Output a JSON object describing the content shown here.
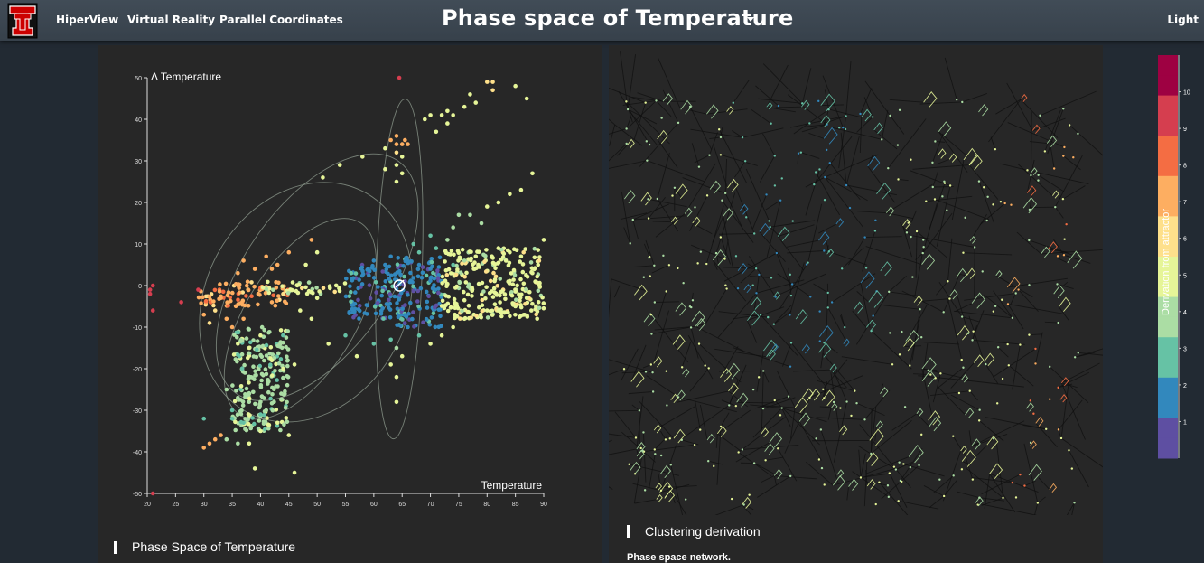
{
  "navbar": {
    "links": [
      "HiperView",
      "Virtual Reality",
      "Parallel Coordinates"
    ],
    "title": "Phase space of Temperature",
    "theme_toggle": "Light",
    "logo_letter": "T"
  },
  "left_panel": {
    "heading": "Phase Space of Temperature"
  },
  "right_panel": {
    "heading": "Clustering derivation",
    "subtitle": "Phase space network."
  },
  "colors": {
    "page_bg": "#222a33",
    "panel_bg": "#272727",
    "navbar_bg": "#3b4550",
    "scale": [
      "#5e4fa2",
      "#3288bd",
      "#66c2a5",
      "#abdda4",
      "#e6f598",
      "#fee08b",
      "#fdae61",
      "#f46d43",
      "#d53e4f",
      "#9e0142"
    ]
  },
  "legend": {
    "label": "Derivation from attractor",
    "ticks": [
      "1",
      "2",
      "3",
      "4",
      "5",
      "6",
      "7",
      "8",
      "9",
      "10"
    ],
    "domain": [
      0,
      11
    ]
  },
  "chart_data": {
    "type": "scatter",
    "title": "",
    "xlabel": "Temperature",
    "ylabel": "Δ Temperature",
    "xlim": [
      20,
      90
    ],
    "ylim": [
      -50,
      50
    ],
    "xticks": [
      "20",
      "25",
      "30",
      "35",
      "40",
      "45",
      "50",
      "55",
      "60",
      "65",
      "70",
      "75",
      "80",
      "85",
      "90"
    ],
    "yticks": [
      "-50",
      "-40",
      "-30",
      "-20",
      "-10",
      "0",
      "10",
      "20",
      "30",
      "40",
      "50"
    ],
    "grid": false,
    "clusters": [
      {
        "x_range": [
          29,
          45
        ],
        "y_range": [
          -5,
          1
        ],
        "color_level": 7
      },
      {
        "x_range": [
          40,
          55
        ],
        "y_range": [
          -2,
          1
        ],
        "color_level": 5
      },
      {
        "x_range": [
          55,
          65
        ],
        "y_range": [
          -8,
          5
        ],
        "color_level": 2
      },
      {
        "x_range": [
          64,
          72
        ],
        "y_range": [
          -10,
          7
        ],
        "color_level": 2
      },
      {
        "x_range": [
          72,
          90
        ],
        "y_range": [
          -8,
          9
        ],
        "color_level": 5
      },
      {
        "x_range": [
          35,
          45
        ],
        "y_range": [
          -35,
          -10
        ],
        "color_level": 4
      }
    ],
    "points": [
      {
        "x": 21,
        "y": 0,
        "level": 9
      },
      {
        "x": 20.5,
        "y": -1,
        "level": 9
      },
      {
        "x": 20.5,
        "y": -2,
        "level": 9
      },
      {
        "x": 21,
        "y": -6,
        "level": 9
      },
      {
        "x": 26,
        "y": -4,
        "level": 9
      },
      {
        "x": 29,
        "y": -1,
        "level": 9
      },
      {
        "x": 21,
        "y": -50,
        "level": 9
      },
      {
        "x": 64.5,
        "y": 50,
        "level": 9
      },
      {
        "x": 80,
        "y": 49,
        "level": 6
      },
      {
        "x": 81,
        "y": 49,
        "level": 6
      },
      {
        "x": 81,
        "y": 47,
        "level": 6
      },
      {
        "x": 85,
        "y": 48,
        "level": 5
      },
      {
        "x": 87,
        "y": 45,
        "level": 5
      },
      {
        "x": 77,
        "y": 46,
        "level": 5
      },
      {
        "x": 78,
        "y": 44,
        "level": 5
      },
      {
        "x": 76,
        "y": 43,
        "level": 5
      },
      {
        "x": 74,
        "y": 41,
        "level": 5
      },
      {
        "x": 73,
        "y": 42,
        "level": 5
      },
      {
        "x": 72,
        "y": 41,
        "level": 5
      },
      {
        "x": 70,
        "y": 41,
        "level": 5
      },
      {
        "x": 69,
        "y": 40,
        "level": 5
      },
      {
        "x": 73,
        "y": 39,
        "level": 5
      },
      {
        "x": 71,
        "y": 37,
        "level": 5
      },
      {
        "x": 64,
        "y": 36,
        "level": 7
      },
      {
        "x": 63,
        "y": 35,
        "level": 7
      },
      {
        "x": 64,
        "y": 34,
        "level": 7
      },
      {
        "x": 65,
        "y": 34,
        "level": 7
      },
      {
        "x": 65.5,
        "y": 35,
        "level": 7
      },
      {
        "x": 66,
        "y": 34,
        "level": 7
      },
      {
        "x": 64,
        "y": 32,
        "level": 6
      },
      {
        "x": 65,
        "y": 31,
        "level": 5
      },
      {
        "x": 64,
        "y": 29,
        "level": 5
      },
      {
        "x": 65,
        "y": 27,
        "level": 5
      },
      {
        "x": 64,
        "y": 25,
        "level": 5
      },
      {
        "x": 62,
        "y": 28,
        "level": 5
      },
      {
        "x": 62,
        "y": 33,
        "level": 5
      },
      {
        "x": 58,
        "y": 31,
        "level": 5
      },
      {
        "x": 54,
        "y": 29,
        "level": 5
      },
      {
        "x": 51,
        "y": 26,
        "level": 5
      },
      {
        "x": 88,
        "y": 27,
        "level": 5
      },
      {
        "x": 86,
        "y": 23,
        "level": 5
      },
      {
        "x": 84,
        "y": 22,
        "level": 5
      },
      {
        "x": 82,
        "y": 20,
        "level": 5
      },
      {
        "x": 80,
        "y": 19,
        "level": 5
      },
      {
        "x": 77,
        "y": 17,
        "level": 4
      },
      {
        "x": 75,
        "y": 17,
        "level": 4
      },
      {
        "x": 79,
        "y": 15,
        "level": 4
      },
      {
        "x": 74,
        "y": 14,
        "level": 4
      },
      {
        "x": 73,
        "y": 11,
        "level": 4
      },
      {
        "x": 70,
        "y": 12,
        "level": 3
      },
      {
        "x": 71,
        "y": 9,
        "level": 3
      },
      {
        "x": 68,
        "y": 8,
        "level": 3
      },
      {
        "x": 67,
        "y": 10,
        "level": 3
      },
      {
        "x": 66,
        "y": 6,
        "level": 2
      },
      {
        "x": 63,
        "y": 7,
        "level": 2
      },
      {
        "x": 60,
        "y": 6,
        "level": 2
      },
      {
        "x": 59,
        "y": 4,
        "level": 2
      },
      {
        "x": 56,
        "y": 3,
        "level": 3
      },
      {
        "x": 49,
        "y": 11,
        "level": 7
      },
      {
        "x": 50,
        "y": 8,
        "level": 5
      },
      {
        "x": 48,
        "y": 5,
        "level": 5
      },
      {
        "x": 45,
        "y": 8,
        "level": 7
      },
      {
        "x": 43,
        "y": 5,
        "level": 7
      },
      {
        "x": 42,
        "y": 4,
        "level": 7
      },
      {
        "x": 41,
        "y": 7,
        "level": 7
      },
      {
        "x": 39,
        "y": 4,
        "level": 7
      },
      {
        "x": 37,
        "y": 6,
        "level": 7
      },
      {
        "x": 36,
        "y": 3,
        "level": 7
      },
      {
        "x": 34,
        "y": -8,
        "level": 7
      },
      {
        "x": 35,
        "y": -10,
        "level": 7
      },
      {
        "x": 32,
        "y": -6,
        "level": 6
      },
      {
        "x": 36,
        "y": -14,
        "level": 5
      },
      {
        "x": 38,
        "y": -15,
        "level": 5
      },
      {
        "x": 40,
        "y": -12,
        "level": 5
      },
      {
        "x": 42,
        "y": -18,
        "level": 5
      },
      {
        "x": 44,
        "y": -20,
        "level": 5
      },
      {
        "x": 46,
        "y": -19,
        "level": 5
      },
      {
        "x": 34,
        "y": -25,
        "level": 4
      },
      {
        "x": 36,
        "y": -27,
        "level": 4
      },
      {
        "x": 38,
        "y": -26,
        "level": 4
      },
      {
        "x": 40,
        "y": -28,
        "level": 4
      },
      {
        "x": 41,
        "y": -30,
        "level": 4
      },
      {
        "x": 35,
        "y": -30,
        "level": 3
      },
      {
        "x": 35,
        "y": -32,
        "level": 3
      },
      {
        "x": 37,
        "y": -33,
        "level": 3
      },
      {
        "x": 40,
        "y": -31,
        "level": 3
      },
      {
        "x": 43,
        "y": -33,
        "level": 5
      },
      {
        "x": 45,
        "y": -36,
        "level": 5
      },
      {
        "x": 40,
        "y": -35,
        "level": 5
      },
      {
        "x": 38,
        "y": -38,
        "level": 5
      },
      {
        "x": 36,
        "y": -38,
        "level": 4
      },
      {
        "x": 34,
        "y": -37,
        "level": 4
      },
      {
        "x": 33,
        "y": -36,
        "level": 7
      },
      {
        "x": 32,
        "y": -37,
        "level": 7
      },
      {
        "x": 31,
        "y": -38,
        "level": 7
      },
      {
        "x": 30,
        "y": -39,
        "level": 7
      },
      {
        "x": 30,
        "y": -32,
        "level": 3
      },
      {
        "x": 39,
        "y": -44,
        "level": 5
      },
      {
        "x": 46,
        "y": -45,
        "level": 5
      },
      {
        "x": 64,
        "y": -28,
        "level": 5
      },
      {
        "x": 64,
        "y": -22,
        "level": 5
      },
      {
        "x": 63,
        "y": -19,
        "level": 5
      },
      {
        "x": 65,
        "y": -17,
        "level": 5
      },
      {
        "x": 64,
        "y": -15,
        "level": 4
      },
      {
        "x": 63,
        "y": -13,
        "level": 3
      },
      {
        "x": 57,
        "y": -17,
        "level": 5
      },
      {
        "x": 60,
        "y": -14,
        "level": 3
      },
      {
        "x": 52,
        "y": -14,
        "level": 5
      },
      {
        "x": 55,
        "y": -12,
        "level": 3
      },
      {
        "x": 49,
        "y": -8,
        "level": 5
      },
      {
        "x": 47,
        "y": -6,
        "level": 5
      },
      {
        "x": 50,
        "y": -3,
        "level": 5
      },
      {
        "x": 68,
        "y": -12,
        "level": 3
      },
      {
        "x": 66,
        "y": -10,
        "level": 2
      },
      {
        "x": 70,
        "y": -14,
        "level": 5
      },
      {
        "x": 72,
        "y": -12,
        "level": 5
      },
      {
        "x": 74,
        "y": -10,
        "level": 5
      },
      {
        "x": 76,
        "y": -8,
        "level": 5
      },
      {
        "x": 80,
        "y": -6,
        "level": 5
      },
      {
        "x": 82,
        "y": -6,
        "level": 5
      },
      {
        "x": 85,
        "y": -5,
        "level": 5
      },
      {
        "x": 87,
        "y": -3,
        "level": 5
      },
      {
        "x": 88,
        "y": 3,
        "level": 5
      },
      {
        "x": 89,
        "y": 5,
        "level": 5
      },
      {
        "x": 90,
        "y": 11,
        "level": 5
      },
      {
        "x": 86,
        "y": 7,
        "level": 5
      },
      {
        "x": 84,
        "y": 8,
        "level": 5
      },
      {
        "x": 82,
        "y": 9,
        "level": 5
      },
      {
        "x": 78,
        "y": 7,
        "level": 5
      },
      {
        "x": 76,
        "y": 6,
        "level": 4
      },
      {
        "x": 74,
        "y": 5,
        "level": 3
      },
      {
        "x": 70,
        "y": 4,
        "level": 2
      },
      {
        "x": 68,
        "y": 5,
        "level": 2
      },
      {
        "x": 62,
        "y": 5,
        "level": 2
      },
      {
        "x": 30,
        "y": -7,
        "level": 7
      },
      {
        "x": 31,
        "y": -9,
        "level": 6
      },
      {
        "x": 33,
        "y": -3,
        "level": 7
      },
      {
        "x": 37,
        "y": -8,
        "level": 7
      },
      {
        "x": 42,
        "y": -4,
        "level": 7
      },
      {
        "x": 44,
        "y": -2,
        "level": 6
      }
    ]
  },
  "network_data": {
    "x_range": [
      0,
      100
    ],
    "y_range": [
      0,
      100
    ]
  }
}
